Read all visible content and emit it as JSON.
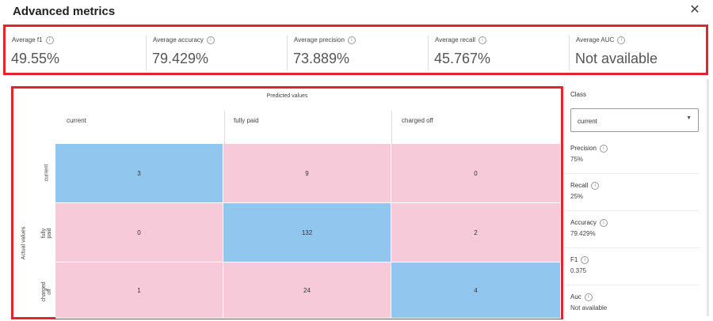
{
  "dialog": {
    "title": "Advanced metrics",
    "close_glyph": "✕"
  },
  "metrics": [
    {
      "label": "Average f1",
      "value": "49.55%"
    },
    {
      "label": "Average accuracy",
      "value": "79.429%"
    },
    {
      "label": "Average precision",
      "value": "73.889%"
    },
    {
      "label": "Average recall",
      "value": "45.767%"
    },
    {
      "label": "Average AUC",
      "value": "Not available"
    }
  ],
  "matrix": {
    "predicted_title": "Predicted values",
    "actual_title": "Actual values",
    "columns": [
      "current",
      "fully paid",
      "charged off"
    ],
    "rows": [
      "current",
      "fully paid",
      "charged off"
    ],
    "values": [
      [
        3,
        9,
        0
      ],
      [
        0,
        132,
        2
      ],
      [
        1,
        24,
        4
      ]
    ],
    "colors": {
      "diagonal": "#91c6ee",
      "off_diagonal": "#f6cad9"
    }
  },
  "side": {
    "class_label": "Class",
    "class_selected": "current",
    "items": [
      {
        "label": "Precision",
        "value": "75%"
      },
      {
        "label": "Recall",
        "value": "25%"
      },
      {
        "label": "Accuracy",
        "value": "79.429%"
      },
      {
        "label": "F1",
        "value": "0.375"
      },
      {
        "label": "Auc",
        "value": "Not available"
      }
    ]
  },
  "icons": {
    "info": "info-icon",
    "close": "close-icon",
    "chevron": "chevron-down-icon"
  },
  "accent": "#e0262b"
}
